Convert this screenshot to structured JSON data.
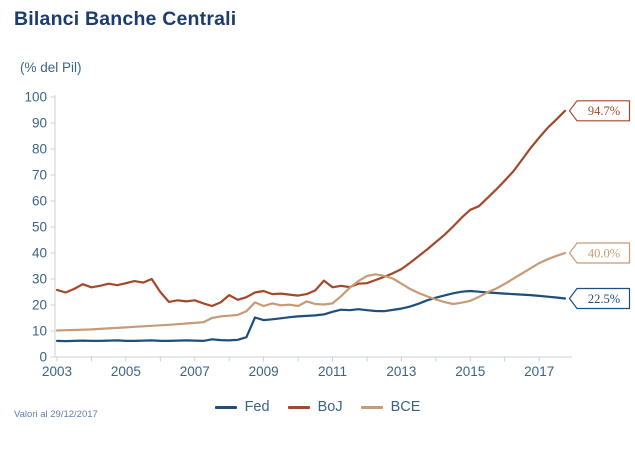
{
  "header": {
    "title": "Bilanci Banche Centrali"
  },
  "footnote": {
    "text": "Valori al 29/12/2017"
  },
  "colors": {
    "title": "#1A3C6E",
    "axis_text": "#3B6386",
    "axis_line": "#CBD0D8",
    "footnote": "#6182A4",
    "background": "#FFFFFF"
  },
  "chart_data": {
    "type": "line",
    "title": "Bilanci Banche Centrali",
    "ylabel": "(% del Pil)",
    "xlabel": "",
    "x_start": 2003.0,
    "x_step": 0.25,
    "xlim": [
      2003.0,
      2017.75
    ],
    "ylim": [
      0,
      100
    ],
    "y_ticks": [
      0,
      10,
      20,
      30,
      40,
      50,
      60,
      70,
      80,
      90,
      100
    ],
    "x_tick_years": [
      2003,
      2004,
      2005,
      2006,
      2007,
      2008,
      2009,
      2010,
      2011,
      2012,
      2013,
      2014,
      2015,
      2016,
      2017
    ],
    "x_label_years": [
      2003,
      2005,
      2007,
      2009,
      2011,
      2013,
      2015,
      2017
    ],
    "grid": false,
    "legend_position": "bottom",
    "series": [
      {
        "name": "Fed",
        "color": "#1F4E79",
        "end_label": "22.5%",
        "end_value": 22.5,
        "values": [
          6.2,
          6.1,
          6.2,
          6.3,
          6.2,
          6.2,
          6.3,
          6.4,
          6.2,
          6.2,
          6.3,
          6.4,
          6.2,
          6.2,
          6.3,
          6.4,
          6.3,
          6.2,
          6.8,
          6.5,
          6.4,
          6.6,
          7.6,
          15.2,
          14.2,
          14.5,
          14.9,
          15.3,
          15.6,
          15.8,
          16.0,
          16.4,
          17.4,
          18.2,
          18.0,
          18.4,
          18.0,
          17.7,
          17.6,
          18.1,
          18.6,
          19.4,
          20.5,
          21.8,
          22.8,
          23.7,
          24.5,
          25.1,
          25.4,
          25.1,
          24.8,
          24.6,
          24.4,
          24.2,
          24.0,
          23.8,
          23.5,
          23.2,
          22.9,
          22.5
        ]
      },
      {
        "name": "BoJ",
        "color": "#A1492B",
        "end_label": "94.7%",
        "end_value": 94.7,
        "values": [
          25.8,
          24.8,
          26.2,
          28.0,
          26.8,
          27.4,
          28.2,
          27.6,
          28.4,
          29.2,
          28.6,
          30.0,
          25.0,
          21.2,
          21.8,
          21.4,
          21.8,
          20.6,
          19.6,
          21.0,
          23.8,
          22.0,
          23.0,
          24.8,
          25.4,
          24.2,
          24.4,
          24.0,
          23.6,
          24.2,
          25.6,
          29.4,
          26.8,
          27.4,
          26.9,
          28.2,
          28.4,
          29.6,
          30.8,
          32.2,
          33.8,
          36.2,
          38.8,
          41.4,
          44.2,
          47.0,
          50.2,
          53.6,
          56.6,
          58.0,
          61.2,
          64.4,
          67.8,
          71.4,
          75.8,
          80.4,
          84.4,
          88.2,
          91.4,
          94.7
        ]
      },
      {
        "name": "BCE",
        "color": "#C79B76",
        "end_label": "40.0%",
        "end_value": 40.0,
        "values": [
          10.2,
          10.3,
          10.4,
          10.5,
          10.6,
          10.8,
          11.0,
          11.2,
          11.4,
          11.6,
          11.8,
          12.0,
          12.2,
          12.4,
          12.6,
          12.9,
          13.1,
          13.4,
          15.0,
          15.6,
          15.9,
          16.2,
          17.6,
          21.0,
          19.6,
          20.6,
          19.9,
          20.1,
          19.6,
          21.4,
          20.4,
          20.2,
          20.6,
          23.4,
          26.6,
          29.2,
          31.2,
          31.8,
          31.2,
          30.2,
          28.2,
          26.2,
          24.6,
          23.3,
          22.1,
          21.1,
          20.4,
          20.9,
          21.6,
          23.1,
          24.9,
          26.3,
          28.1,
          30.1,
          32.1,
          34.1,
          36.1,
          37.6,
          38.9,
          40.0
        ]
      }
    ]
  }
}
